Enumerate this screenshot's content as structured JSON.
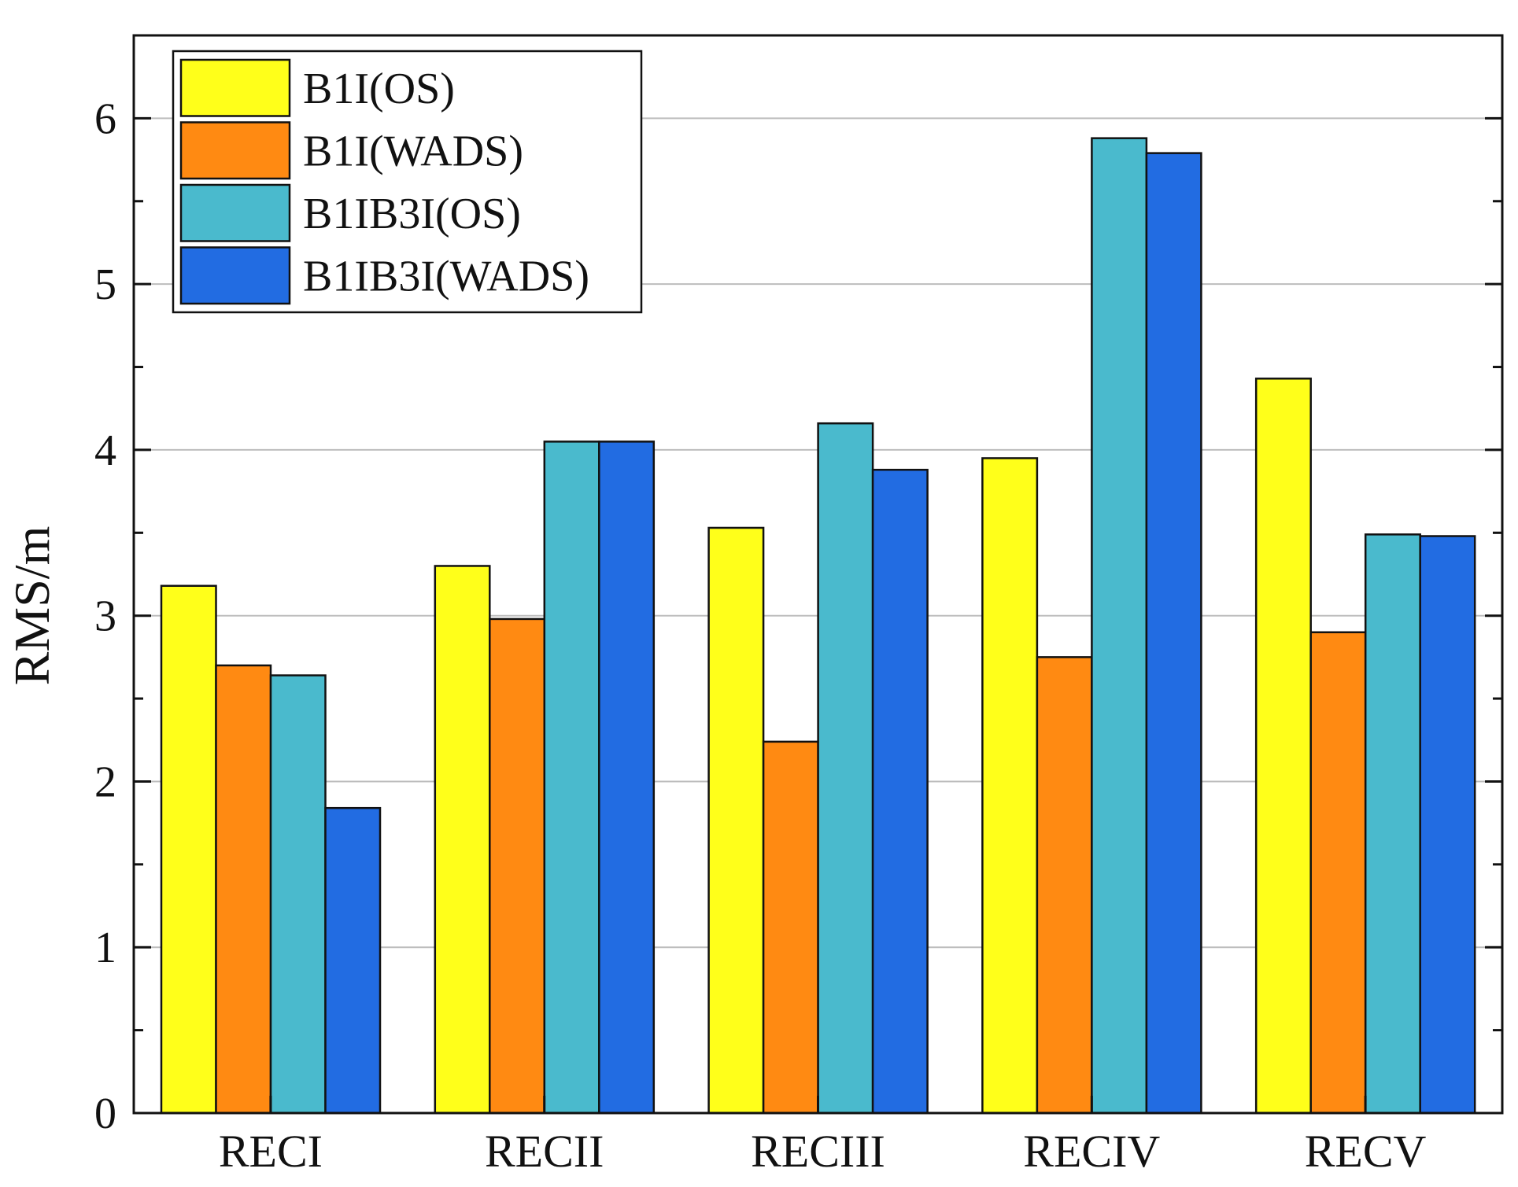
{
  "chart_data": {
    "type": "bar",
    "title": "",
    "xlabel": "",
    "ylabel": "RMS/m",
    "ylim": [
      0,
      6.5
    ],
    "yticks": [
      0,
      1,
      2,
      3,
      4,
      5,
      6
    ],
    "grid": true,
    "legend_position": "top-left",
    "categories": [
      "RECI",
      "RECII",
      "RECIII",
      "RECIV",
      "RECV"
    ],
    "series": [
      {
        "name": "B1I(OS)",
        "color": "#FFFF1A",
        "values": [
          3.18,
          3.3,
          3.53,
          3.95,
          4.43
        ]
      },
      {
        "name": "B1I(WADS)",
        "color": "#FF8A12",
        "values": [
          2.7,
          2.98,
          2.24,
          2.75,
          2.9
        ]
      },
      {
        "name": "B1IB3I(OS)",
        "color": "#4ABACD",
        "values": [
          2.64,
          4.05,
          4.16,
          5.88,
          3.49
        ]
      },
      {
        "name": "B1IB3I(WADS)",
        "color": "#226CE2",
        "values": [
          1.84,
          4.05,
          3.88,
          5.79,
          3.48
        ]
      }
    ]
  }
}
